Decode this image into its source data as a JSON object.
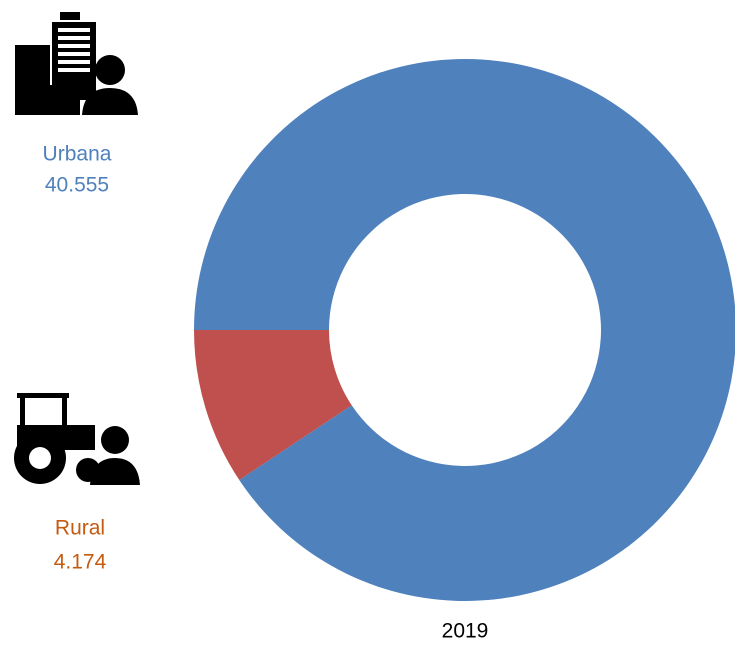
{
  "chart_data": {
    "type": "donut",
    "title": "2019",
    "categories": [
      "Urbana",
      "Rural"
    ],
    "values": [
      40555,
      4174
    ],
    "value_labels": [
      "40.555",
      "4.174"
    ],
    "colors": [
      "#4f81bd",
      "#c0504d"
    ],
    "label_colors": [
      "#4f81bd",
      "#c55a11"
    ]
  }
}
